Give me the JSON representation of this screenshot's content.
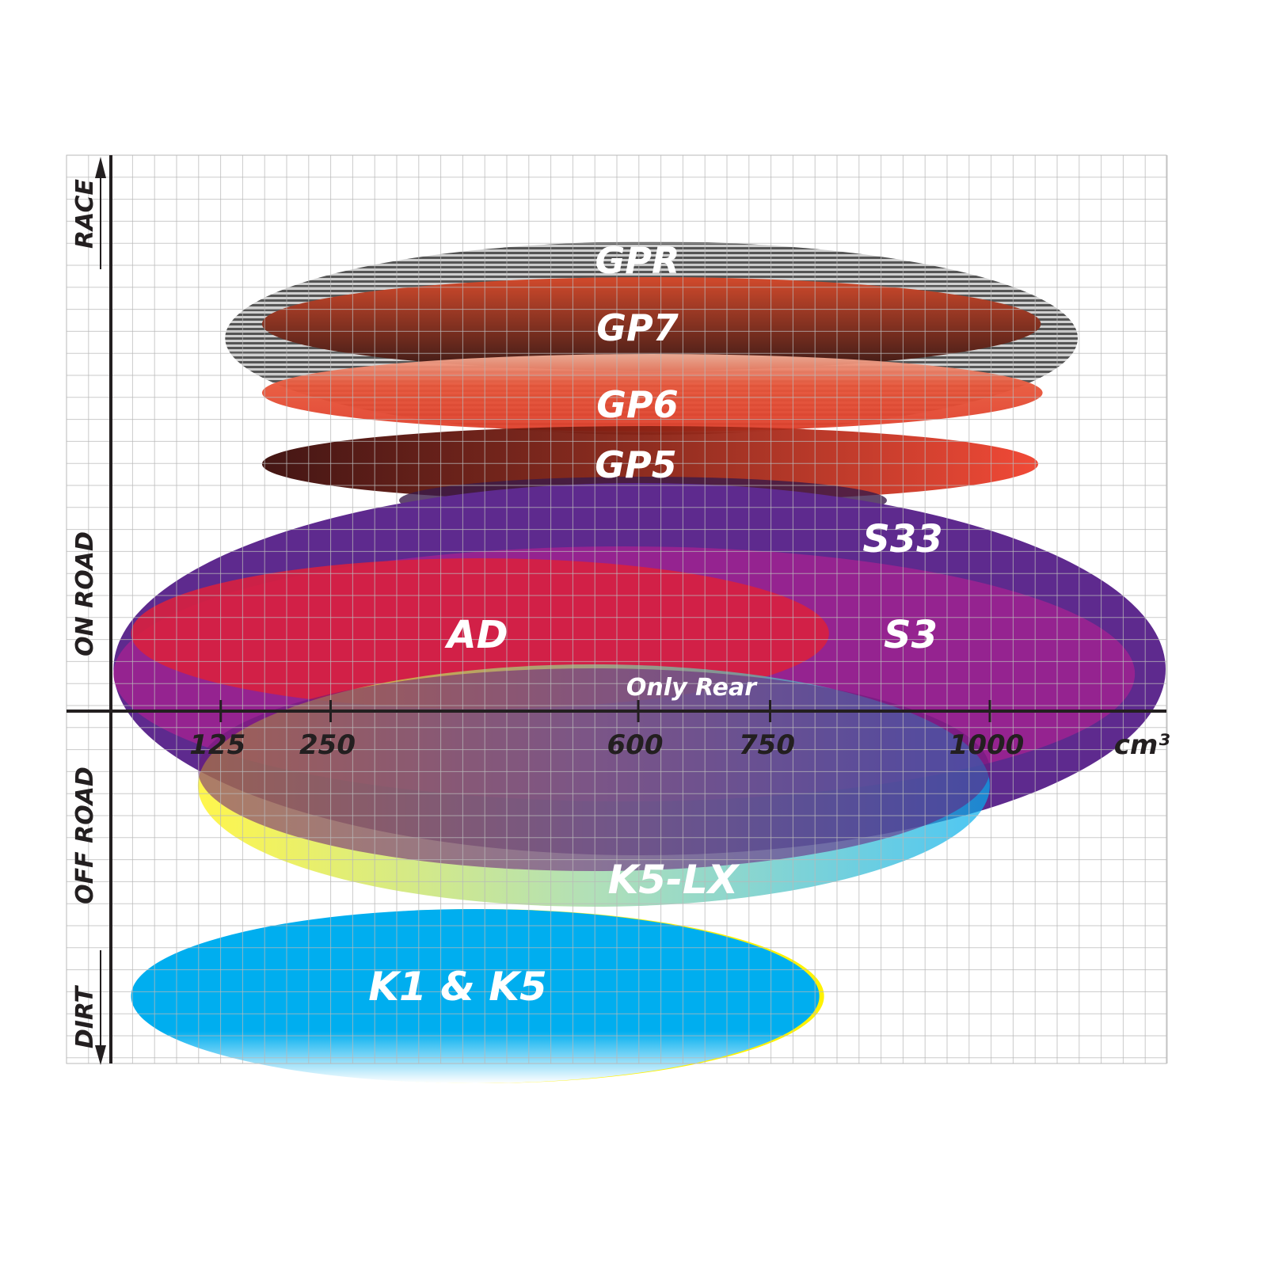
{
  "chart_data": {
    "type": "positioning-ellipses",
    "xlabel": "cm³",
    "x_ticks": [
      "125",
      "250",
      "600",
      "750",
      "1000"
    ],
    "y_labels": [
      "RACE",
      "ON ROAD",
      "OFF ROAD",
      "DIRT"
    ],
    "grid": true,
    "ellipses": [
      {
        "label": "GPR",
        "color": "#8a8a8a",
        "xrange_cc": [
          130,
          1100
        ],
        "category": "RACE"
      },
      {
        "label": "GP7",
        "color": "#b4452c",
        "xrange_cc": [
          172,
          1058
        ],
        "category": "RACE"
      },
      {
        "label": "GP6",
        "color": "#e2452f",
        "xrange_cc": [
          172,
          1060
        ],
        "category": "RACE"
      },
      {
        "label": "GP5",
        "color": "#7a1a12",
        "xrange_cc": [
          172,
          1055
        ],
        "category": "RACE / ON ROAD"
      },
      {
        "label": "S33",
        "color": "#5e2a8e",
        "xrange_cc": [
          3,
          1200
        ],
        "category": "ON ROAD"
      },
      {
        "label": "S3",
        "color": "#9b2290",
        "xrange_cc": [
          3,
          1165
        ],
        "category": "ON ROAD"
      },
      {
        "label": "AD",
        "color": "#d8203f",
        "xrange_cc": [
          23,
          817
        ],
        "category": "ON ROAD"
      },
      {
        "label": "K5-LX",
        "color": "#1cb8d8",
        "note": "Only Rear",
        "xrange_cc": [
          99,
          1000
        ],
        "category": "OFF ROAD"
      },
      {
        "label": "K1 & K5",
        "color": "#00aeef",
        "xrange_cc": [
          23,
          806
        ],
        "category": "DIRT"
      }
    ]
  }
}
